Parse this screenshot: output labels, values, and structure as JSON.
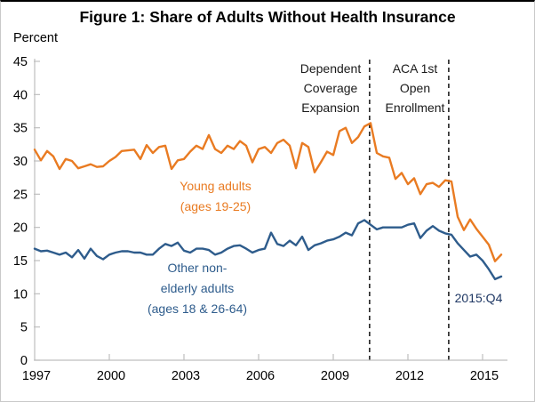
{
  "figure": {
    "title": "Figure 1: Share of Adults Without Health Insurance",
    "y_axis_title": "Percent"
  },
  "chart_data": {
    "type": "line",
    "x_unit": "quarterly",
    "x_start_year": 1997,
    "x_end_label": "2015:Q4",
    "x_ticks": [
      1997,
      2000,
      2003,
      2006,
      2009,
      2012,
      2015
    ],
    "x_axis_end_year": 2016,
    "ylim": [
      0,
      45
    ],
    "y_ticks": [
      0,
      5,
      10,
      15,
      20,
      25,
      30,
      35,
      40,
      45
    ],
    "grid": false,
    "axis_color": "#bfbfbf",
    "tick_label_color": "#000000",
    "series": [
      {
        "name": "Young adults (ages 19-25)",
        "label_lines": [
          "Young adults",
          "(ages 19-25)"
        ],
        "color": "#E97B22",
        "values": [
          31.7,
          30.1,
          31.5,
          30.7,
          28.8,
          30.3,
          30.0,
          28.9,
          29.2,
          29.5,
          29.1,
          29.2,
          30.0,
          30.6,
          31.5,
          31.6,
          31.7,
          30.3,
          32.4,
          31.2,
          32.1,
          32.3,
          28.8,
          30.1,
          30.3,
          31.4,
          32.3,
          31.8,
          33.9,
          31.8,
          31.2,
          32.3,
          31.8,
          33.0,
          32.3,
          29.8,
          31.8,
          32.1,
          31.2,
          32.7,
          33.2,
          32.3,
          28.9,
          32.7,
          32.1,
          28.3,
          29.8,
          31.4,
          30.9,
          34.5,
          35.0,
          32.7,
          33.6,
          35.2,
          35.7,
          31.2,
          30.7,
          30.5,
          27.3,
          28.2,
          26.5,
          27.4,
          25.0,
          26.5,
          26.7,
          26.1,
          27.1,
          26.9,
          21.6,
          19.6,
          21.2,
          19.8,
          18.6,
          17.4,
          14.9,
          15.9
        ]
      },
      {
        "name": "Other non-elderly adults (ages 18 & 26-64)",
        "label_lines": [
          "Other non-",
          "elderly adults",
          "(ages 18 & 26-64)"
        ],
        "color": "#2E5C8C",
        "values": [
          16.8,
          16.4,
          16.5,
          16.2,
          15.9,
          16.2,
          15.5,
          16.6,
          15.3,
          16.8,
          15.7,
          15.2,
          15.9,
          16.2,
          16.4,
          16.4,
          16.2,
          16.2,
          15.9,
          15.9,
          16.8,
          17.5,
          17.2,
          17.7,
          16.5,
          16.2,
          16.8,
          16.8,
          16.6,
          15.9,
          16.2,
          16.8,
          17.2,
          17.3,
          16.8,
          16.2,
          16.6,
          16.8,
          19.2,
          17.5,
          17.2,
          18.0,
          17.3,
          18.6,
          16.6,
          17.3,
          17.6,
          18.0,
          18.2,
          18.6,
          19.2,
          18.8,
          20.6,
          21.1,
          20.4,
          19.7,
          20.0,
          20.0,
          20.0,
          20.0,
          20.4,
          20.6,
          18.4,
          19.5,
          20.2,
          19.5,
          19.1,
          18.9,
          17.6,
          16.6,
          15.6,
          15.9,
          15.0,
          13.7,
          12.2,
          12.6
        ]
      }
    ],
    "vlines": [
      {
        "x_year": 2010.46,
        "label_lines": [
          "Dependent",
          "Coverage",
          "Expansion"
        ]
      },
      {
        "x_year": 2013.64,
        "label_lines": [
          "ACA 1st",
          "Open",
          "Enrollment"
        ]
      }
    ],
    "end_annotation": {
      "text": "2015:Q4",
      "color": "#1F3864"
    }
  }
}
